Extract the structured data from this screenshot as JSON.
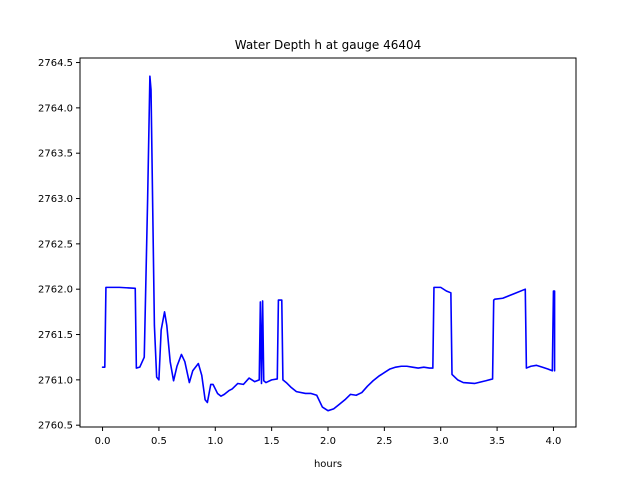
{
  "chart_data": {
    "type": "line",
    "title": "Water Depth h at gauge 46404",
    "xlabel": "hours",
    "ylabel": "",
    "xlim": [
      -0.2,
      4.2
    ],
    "ylim": [
      2760.48,
      2764.55
    ],
    "grid": false,
    "x_ticks": [
      0.0,
      0.5,
      1.0,
      1.5,
      2.0,
      2.5,
      3.0,
      3.5,
      4.0
    ],
    "x_tick_labels": [
      "0.0",
      "0.5",
      "1.0",
      "1.5",
      "2.0",
      "2.5",
      "3.0",
      "3.5",
      "4.0"
    ],
    "y_ticks": [
      2760.5,
      2761.0,
      2761.5,
      2762.0,
      2762.5,
      2763.0,
      2763.5,
      2764.0,
      2764.5
    ],
    "y_tick_labels": [
      "2760.5",
      "2761.0",
      "2761.5",
      "2762.0",
      "2762.5",
      "2763.0",
      "2763.5",
      "2764.0",
      "2764.5"
    ],
    "series": [
      {
        "color": "#0000ff",
        "x": [
          0.0,
          0.02,
          0.03,
          0.15,
          0.29,
          0.3,
          0.33,
          0.37,
          0.4,
          0.42,
          0.43,
          0.445,
          0.46,
          0.48,
          0.5,
          0.52,
          0.55,
          0.57,
          0.6,
          0.63,
          0.66,
          0.7,
          0.73,
          0.77,
          0.8,
          0.85,
          0.88,
          0.91,
          0.93,
          0.96,
          0.98,
          1.02,
          1.05,
          1.08,
          1.12,
          1.15,
          1.2,
          1.25,
          1.3,
          1.35,
          1.39,
          1.4,
          1.41,
          1.42,
          1.43,
          1.45,
          1.5,
          1.55,
          1.56,
          1.58,
          1.59,
          1.6,
          1.63,
          1.67,
          1.72,
          1.8,
          1.85,
          1.9,
          1.95,
          2.0,
          2.05,
          2.1,
          2.15,
          2.2,
          2.25,
          2.3,
          2.35,
          2.4,
          2.45,
          2.5,
          2.55,
          2.6,
          2.65,
          2.7,
          2.75,
          2.8,
          2.85,
          2.9,
          2.93,
          2.94,
          2.95,
          3.0,
          3.05,
          3.09,
          3.1,
          3.15,
          3.2,
          3.3,
          3.4,
          3.46,
          3.47,
          3.48,
          3.55,
          3.65,
          3.75,
          3.76,
          3.8,
          3.85,
          3.9,
          3.95,
          3.99,
          4.0,
          4.01,
          4.01
        ],
        "y": [
          2761.14,
          2761.14,
          2762.02,
          2762.02,
          2762.01,
          2761.13,
          2761.14,
          2761.25,
          2763.0,
          2764.35,
          2764.2,
          2762.9,
          2761.6,
          2761.03,
          2761.0,
          2761.55,
          2761.75,
          2761.6,
          2761.2,
          2760.99,
          2761.15,
          2761.28,
          2761.2,
          2760.97,
          2761.1,
          2761.18,
          2761.05,
          2760.78,
          2760.75,
          2760.95,
          2760.95,
          2760.85,
          2760.82,
          2760.84,
          2760.88,
          2760.9,
          2760.96,
          2760.95,
          2761.02,
          2760.98,
          2761.0,
          2761.86,
          2760.96,
          2761.87,
          2760.99,
          2760.97,
          2761.0,
          2761.01,
          2761.88,
          2761.88,
          2761.88,
          2761.0,
          2760.97,
          2760.92,
          2760.87,
          2760.85,
          2760.85,
          2760.83,
          2760.7,
          2760.66,
          2760.68,
          2760.73,
          2760.78,
          2760.84,
          2760.83,
          2760.86,
          2760.93,
          2760.99,
          2761.04,
          2761.08,
          2761.12,
          2761.14,
          2761.15,
          2761.15,
          2761.14,
          2761.13,
          2761.14,
          2761.13,
          2761.13,
          2762.02,
          2762.02,
          2762.02,
          2761.98,
          2761.96,
          2761.06,
          2761.0,
          2760.97,
          2760.96,
          2760.99,
          2761.01,
          2761.88,
          2761.89,
          2761.9,
          2761.95,
          2762.0,
          2761.13,
          2761.15,
          2761.16,
          2761.14,
          2761.12,
          2761.1,
          2761.98,
          2761.98,
          2761.1
        ]
      }
    ]
  }
}
